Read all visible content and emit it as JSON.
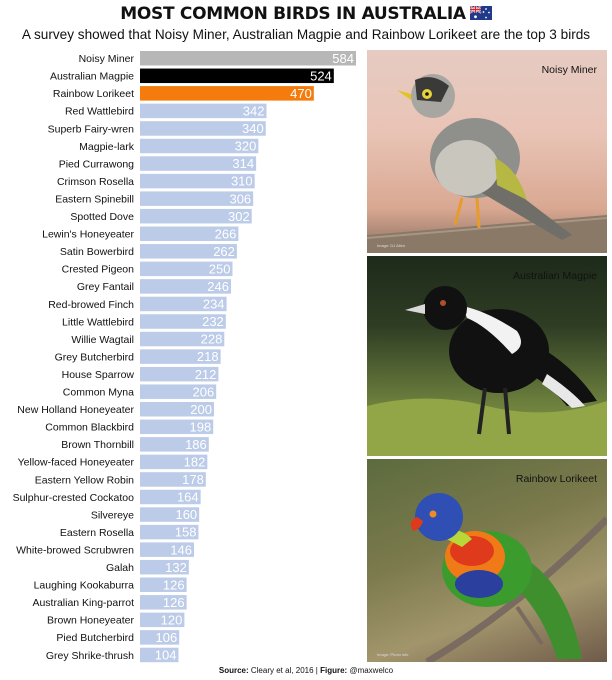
{
  "title": "MOST COMMON BIRDS IN AUSTRALIA",
  "subtitle": "A survey showed that Noisy Miner, Australian Magpie and Rainbow Lorikeet are the top 3 birds",
  "colors": {
    "bar_default": "#bccbe8",
    "bar_first": "#b7b7b7",
    "bar_second": "#000000",
    "bar_third": "#f57c0c",
    "value_text": "#ffffff"
  },
  "chart_data": {
    "type": "bar",
    "orientation": "horizontal",
    "categories": [
      "Noisy Miner",
      "Australian Magpie",
      "Rainbow Lorikeet",
      "Red Wattlebird",
      "Superb Fairy-wren",
      "Magpie-lark",
      "Pied Currawong",
      "Crimson Rosella",
      "Eastern Spinebill",
      "Spotted Dove",
      "Lewin's Honeyeater",
      "Satin Bowerbird",
      "Crested Pigeon",
      "Grey Fantail",
      "Red-browed Finch",
      "Little Wattlebird",
      "Willie Wagtail",
      "Grey Butcherbird",
      "House Sparrow",
      "Common Myna",
      "New Holland Honeyeater",
      "Common Blackbird",
      "Brown Thornbill",
      "Yellow-faced Honeyeater",
      "Eastern Yellow Robin",
      "Sulphur-crested Cockatoo",
      "Silvereye",
      "Eastern Rosella",
      "White-browed Scrubwren",
      "Galah",
      "Laughing Kookaburra",
      "Australian King-parrot",
      "Brown Honeyeater",
      "Pied Butcherbird",
      "Grey Shrike-thrush"
    ],
    "values": [
      584,
      524,
      470,
      342,
      340,
      320,
      314,
      310,
      306,
      302,
      266,
      262,
      250,
      246,
      234,
      232,
      228,
      218,
      212,
      206,
      200,
      198,
      186,
      182,
      178,
      164,
      160,
      158,
      146,
      132,
      126,
      126,
      120,
      106,
      104
    ],
    "xlim": [
      0,
      584
    ],
    "grid": false,
    "legend": "none"
  },
  "photos": [
    {
      "label": "Noisy Miner",
      "credit": "Image: DJ Allen"
    },
    {
      "label": "Australian Magpie",
      "credit": ""
    },
    {
      "label": "Rainbow Lorikeet",
      "credit": "Image: Photo info"
    }
  ],
  "source": {
    "source_label": "Source:",
    "source_text": " Cleary et al, 2016 | ",
    "figure_label": "Figure:",
    "figure_text": " @maxwelco"
  }
}
